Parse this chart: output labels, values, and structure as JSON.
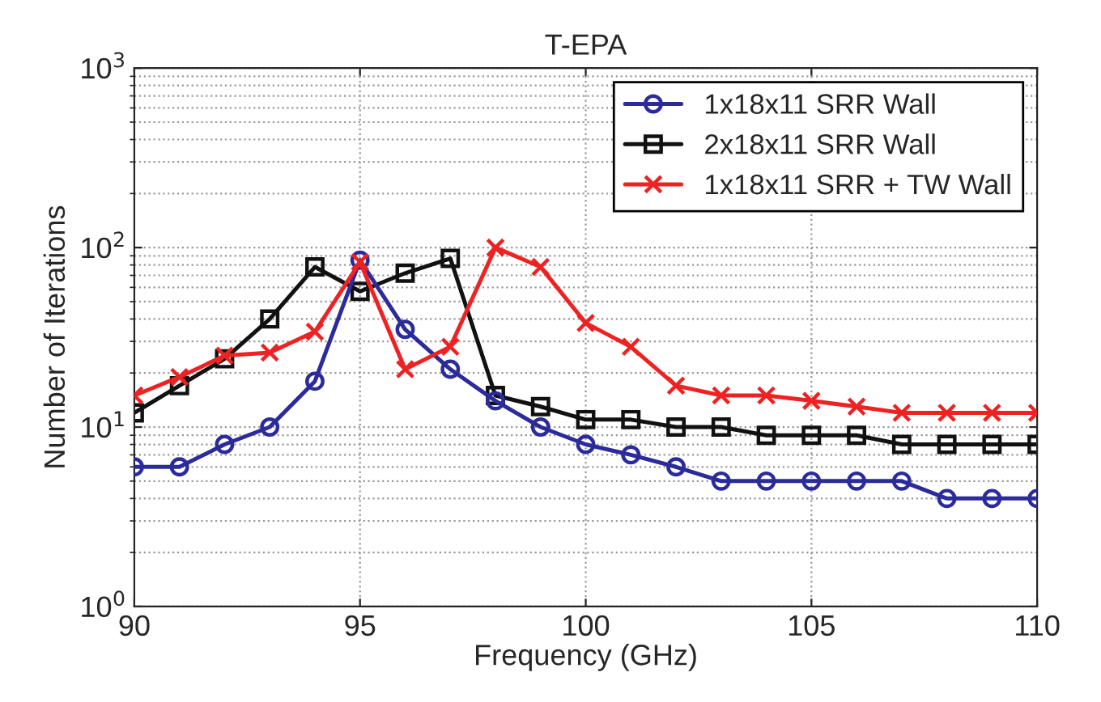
{
  "chart_data": {
    "type": "line",
    "title": "T-EPA",
    "xlabel": "Frequency (GHz)",
    "ylabel": "Number of Iterations",
    "x": [
      90,
      91,
      92,
      93,
      94,
      95,
      96,
      97,
      98,
      99,
      100,
      101,
      102,
      103,
      104,
      105,
      106,
      107,
      108,
      109,
      110
    ],
    "series": [
      {
        "name": "1x18x11 SRR Wall",
        "color": "#2b2b9b",
        "marker": "circle",
        "values": [
          6,
          6,
          8,
          10,
          18,
          85,
          35,
          21,
          14,
          10,
          8,
          7,
          6,
          5,
          5,
          5,
          5,
          5,
          4,
          4,
          4
        ]
      },
      {
        "name": "2x18x11 SRR Wall",
        "color": "#111111",
        "marker": "square",
        "values": [
          12,
          17,
          24,
          40,
          78,
          57,
          72,
          87,
          15,
          13,
          11,
          11,
          10,
          10,
          9,
          9,
          9,
          8,
          8,
          8,
          8
        ]
      },
      {
        "name": "1x18x11 SRR + TW Wall",
        "color": "#ee2222",
        "marker": "cross",
        "values": [
          15,
          19,
          25,
          26,
          34,
          83,
          21,
          28,
          100,
          78,
          38,
          28,
          17,
          15,
          15,
          14,
          13,
          12,
          12,
          12,
          12
        ]
      }
    ],
    "log": "y",
    "xlim": [
      90,
      110
    ],
    "xticks": [
      90,
      95,
      100,
      105,
      110
    ],
    "ylim": [
      1,
      1000
    ],
    "yticks": [
      {
        "value": 1,
        "label": "10$^{0}$"
      },
      {
        "value": 10,
        "label": "10$^{1}$"
      },
      {
        "value": 100,
        "label": "10$^{2}$"
      },
      {
        "value": 1000,
        "label": "10$^{3}$"
      }
    ],
    "grid": true,
    "legend": "top right",
    "line_style": "solid"
  }
}
